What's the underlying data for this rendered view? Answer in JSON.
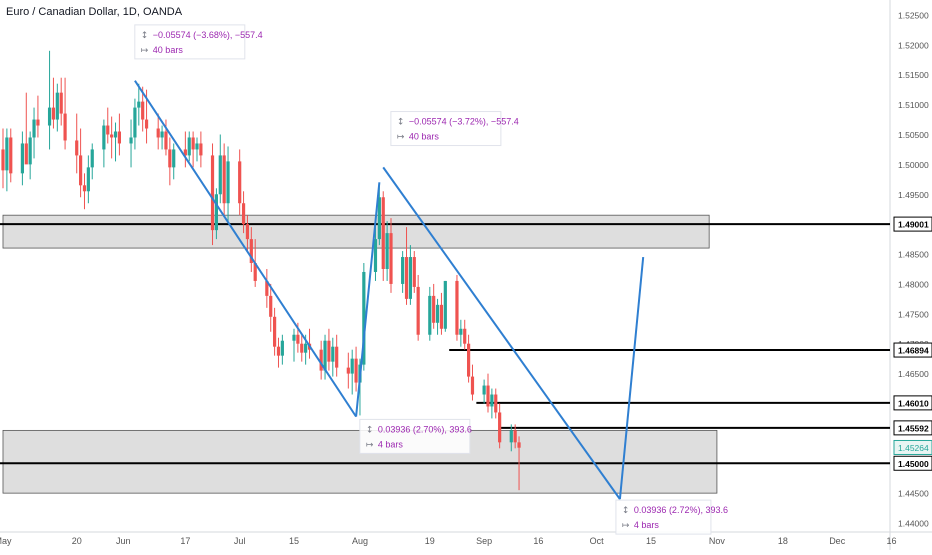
{
  "title": "Euro / Canadian Dollar, 1D, OANDA",
  "colors": {
    "up": "#26a69a",
    "down": "#ef5350",
    "trend": "#2f7fd1",
    "zone_fill": "#d3d3d3",
    "level": "#000000",
    "measure_text": "#9c27b0"
  },
  "chart_data": {
    "type": "candlestick",
    "title": "Euro / Canadian Dollar, 1D, OANDA",
    "ylim": [
      1.4385,
      1.5275
    ],
    "y_ticks": [
      "1.52500",
      "1.52000",
      "1.51500",
      "1.51000",
      "1.50500",
      "1.50000",
      "1.49500",
      "1.49001",
      "1.48500",
      "1.48000",
      "1.47500",
      "1.47000",
      "1.46894",
      "1.46500",
      "1.46010",
      "1.45592",
      "1.45264",
      "1.45000",
      "1.44500",
      "1.44000"
    ],
    "y_tick_values": [
      1.525,
      1.52,
      1.515,
      1.51,
      1.505,
      1.5,
      1.495,
      1.49001,
      1.485,
      1.48,
      1.475,
      1.47,
      1.46894,
      1.465,
      1.4601,
      1.45592,
      1.45264,
      1.45,
      1.445,
      1.44
    ],
    "x_labels": [
      {
        "label": "May",
        "date": "2019-05-01"
      },
      {
        "label": "20",
        "date": "2019-05-20"
      },
      {
        "label": "Jun",
        "date": "2019-06-01"
      },
      {
        "label": "17",
        "date": "2019-06-17"
      },
      {
        "label": "Jul",
        "date": "2019-07-01"
      },
      {
        "label": "15",
        "date": "2019-07-15"
      },
      {
        "label": "Aug",
        "date": "2019-08-01"
      },
      {
        "label": "19",
        "date": "2019-08-19"
      },
      {
        "label": "Sep",
        "date": "2019-09-02"
      },
      {
        "label": "16",
        "date": "2019-09-16"
      },
      {
        "label": "Oct",
        "date": "2019-10-01"
      },
      {
        "label": "15",
        "date": "2019-10-15"
      },
      {
        "label": "Nov",
        "date": "2019-11-01"
      },
      {
        "label": "18",
        "date": "2019-11-18"
      },
      {
        "label": "Dec",
        "date": "2019-12-02"
      },
      {
        "label": "16",
        "date": "2019-12-16"
      }
    ],
    "x_range": [
      "2019-05-01",
      "2019-12-17"
    ],
    "candles": [
      {
        "date": "2019-05-01",
        "o": 1.5025,
        "h": 1.506,
        "l": 1.496,
        "c": 1.499
      },
      {
        "date": "2019-05-02",
        "o": 1.499,
        "h": 1.506,
        "l": 1.4955,
        "c": 1.5045
      },
      {
        "date": "2019-05-03",
        "o": 1.5045,
        "h": 1.506,
        "l": 1.497,
        "c": 1.4985
      },
      {
        "date": "2019-05-06",
        "o": 1.4985,
        "h": 1.5055,
        "l": 1.4965,
        "c": 1.5035
      },
      {
        "date": "2019-05-07",
        "o": 1.5035,
        "h": 1.512,
        "l": 1.5005,
        "c": 1.5
      },
      {
        "date": "2019-05-08",
        "o": 1.5,
        "h": 1.5055,
        "l": 1.4975,
        "c": 1.5045
      },
      {
        "date": "2019-05-09",
        "o": 1.5045,
        "h": 1.5095,
        "l": 1.501,
        "c": 1.5075
      },
      {
        "date": "2019-05-10",
        "o": 1.5075,
        "h": 1.5115,
        "l": 1.5045,
        "c": 1.5065
      },
      {
        "date": "2019-05-13",
        "o": 1.5065,
        "h": 1.519,
        "l": 1.5025,
        "c": 1.5095
      },
      {
        "date": "2019-05-14",
        "o": 1.5095,
        "h": 1.5145,
        "l": 1.506,
        "c": 1.5075
      },
      {
        "date": "2019-05-15",
        "o": 1.5075,
        "h": 1.5135,
        "l": 1.5055,
        "c": 1.512
      },
      {
        "date": "2019-05-16",
        "o": 1.512,
        "h": 1.5145,
        "l": 1.5065,
        "c": 1.5085
      },
      {
        "date": "2019-05-17",
        "o": 1.5085,
        "h": 1.5145,
        "l": 1.5025,
        "c": 1.504
      },
      {
        "date": "2019-05-20",
        "o": 1.504,
        "h": 1.5085,
        "l": 1.4985,
        "c": 1.5015
      },
      {
        "date": "2019-05-21",
        "o": 1.5015,
        "h": 1.506,
        "l": 1.4945,
        "c": 1.4965
      },
      {
        "date": "2019-05-22",
        "o": 1.4965,
        "h": 1.4985,
        "l": 1.4925,
        "c": 1.4955
      },
      {
        "date": "2019-05-23",
        "o": 1.4955,
        "h": 1.5015,
        "l": 1.4935,
        "c": 1.4995
      },
      {
        "date": "2019-05-24",
        "o": 1.4995,
        "h": 1.5035,
        "l": 1.4975,
        "c": 1.5025
      },
      {
        "date": "2019-05-27",
        "o": 1.5025,
        "h": 1.5075,
        "l": 1.4995,
        "c": 1.5065
      },
      {
        "date": "2019-05-28",
        "o": 1.5065,
        "h": 1.5095,
        "l": 1.5035,
        "c": 1.505
      },
      {
        "date": "2019-05-29",
        "o": 1.505,
        "h": 1.508,
        "l": 1.501,
        "c": 1.5045
      },
      {
        "date": "2019-05-30",
        "o": 1.5045,
        "h": 1.507,
        "l": 1.5005,
        "c": 1.5055
      },
      {
        "date": "2019-05-31",
        "o": 1.5055,
        "h": 1.5085,
        "l": 1.5015,
        "c": 1.5035
      },
      {
        "date": "2019-06-03",
        "o": 1.5035,
        "h": 1.5075,
        "l": 1.4995,
        "c": 1.5045
      },
      {
        "date": "2019-06-04",
        "o": 1.5045,
        "h": 1.511,
        "l": 1.5025,
        "c": 1.5095
      },
      {
        "date": "2019-06-05",
        "o": 1.5095,
        "h": 1.5135,
        "l": 1.5065,
        "c": 1.5105
      },
      {
        "date": "2019-06-06",
        "o": 1.5105,
        "h": 1.513,
        "l": 1.5055,
        "c": 1.5075
      },
      {
        "date": "2019-06-07",
        "o": 1.5075,
        "h": 1.5125,
        "l": 1.5035,
        "c": 1.506
      },
      {
        "date": "2019-06-10",
        "o": 1.506,
        "h": 1.5085,
        "l": 1.5025,
        "c": 1.5045
      },
      {
        "date": "2019-06-11",
        "o": 1.5045,
        "h": 1.5065,
        "l": 1.5025,
        "c": 1.5055
      },
      {
        "date": "2019-06-12",
        "o": 1.5055,
        "h": 1.5075,
        "l": 1.5015,
        "c": 1.5025
      },
      {
        "date": "2019-06-13",
        "o": 1.5025,
        "h": 1.5045,
        "l": 1.4965,
        "c": 1.4995
      },
      {
        "date": "2019-06-14",
        "o": 1.4995,
        "h": 1.5035,
        "l": 1.4975,
        "c": 1.5025
      },
      {
        "date": "2019-06-17",
        "o": 1.5025,
        "h": 1.5055,
        "l": 1.4995,
        "c": 1.5015
      },
      {
        "date": "2019-06-18",
        "o": 1.5015,
        "h": 1.5055,
        "l": 1.5005,
        "c": 1.5045
      },
      {
        "date": "2019-06-19",
        "o": 1.5045,
        "h": 1.5055,
        "l": 1.4995,
        "c": 1.5025
      },
      {
        "date": "2019-06-20",
        "o": 1.5025,
        "h": 1.5045,
        "l": 1.5005,
        "c": 1.5035
      },
      {
        "date": "2019-06-21",
        "o": 1.5035,
        "h": 1.5055,
        "l": 1.4995,
        "c": 1.5015
      },
      {
        "date": "2019-06-24",
        "o": 1.5015,
        "h": 1.5035,
        "l": 1.4865,
        "c": 1.489
      },
      {
        "date": "2019-06-25",
        "o": 1.489,
        "h": 1.496,
        "l": 1.4875,
        "c": 1.495
      },
      {
        "date": "2019-06-26",
        "o": 1.495,
        "h": 1.505,
        "l": 1.4935,
        "c": 1.5015
      },
      {
        "date": "2019-06-27",
        "o": 1.5015,
        "h": 1.5035,
        "l": 1.4915,
        "c": 1.4935
      },
      {
        "date": "2019-06-28",
        "o": 1.4935,
        "h": 1.503,
        "l": 1.4905,
        "c": 1.5005
      },
      {
        "date": "2019-07-01",
        "o": 1.5005,
        "h": 1.5025,
        "l": 1.4915,
        "c": 1.4935
      },
      {
        "date": "2019-07-02",
        "o": 1.4935,
        "h": 1.4955,
        "l": 1.4885,
        "c": 1.49
      },
      {
        "date": "2019-07-03",
        "o": 1.49,
        "h": 1.4915,
        "l": 1.4855,
        "c": 1.4875
      },
      {
        "date": "2019-07-04",
        "o": 1.4875,
        "h": 1.4895,
        "l": 1.482,
        "c": 1.4835
      },
      {
        "date": "2019-07-05",
        "o": 1.4835,
        "h": 1.4875,
        "l": 1.4795,
        "c": 1.4805
      },
      {
        "date": "2019-07-08",
        "o": 1.4805,
        "h": 1.4825,
        "l": 1.476,
        "c": 1.478
      },
      {
        "date": "2019-07-09",
        "o": 1.478,
        "h": 1.48,
        "l": 1.472,
        "c": 1.4745
      },
      {
        "date": "2019-07-10",
        "o": 1.4745,
        "h": 1.476,
        "l": 1.468,
        "c": 1.4695
      },
      {
        "date": "2019-07-11",
        "o": 1.4695,
        "h": 1.471,
        "l": 1.466,
        "c": 1.468
      },
      {
        "date": "2019-07-12",
        "o": 1.468,
        "h": 1.4715,
        "l": 1.4665,
        "c": 1.4705
      },
      {
        "date": "2019-07-15",
        "o": 1.4705,
        "h": 1.4725,
        "l": 1.467,
        "c": 1.4715
      },
      {
        "date": "2019-07-16",
        "o": 1.4715,
        "h": 1.4735,
        "l": 1.4685,
        "c": 1.47
      },
      {
        "date": "2019-07-17",
        "o": 1.47,
        "h": 1.4715,
        "l": 1.467,
        "c": 1.4685
      },
      {
        "date": "2019-07-18",
        "o": 1.4685,
        "h": 1.4715,
        "l": 1.4665,
        "c": 1.47
      },
      {
        "date": "2019-07-19",
        "o": 1.47,
        "h": 1.4725,
        "l": 1.4675,
        "c": 1.469
      },
      {
        "date": "2019-07-22",
        "o": 1.469,
        "h": 1.4705,
        "l": 1.464,
        "c": 1.4655
      },
      {
        "date": "2019-07-23",
        "o": 1.4655,
        "h": 1.4715,
        "l": 1.464,
        "c": 1.4705
      },
      {
        "date": "2019-07-24",
        "o": 1.4705,
        "h": 1.4725,
        "l": 1.4655,
        "c": 1.467
      },
      {
        "date": "2019-07-25",
        "o": 1.467,
        "h": 1.471,
        "l": 1.4645,
        "c": 1.4695
      },
      {
        "date": "2019-07-26",
        "o": 1.4695,
        "h": 1.4715,
        "l": 1.4645,
        "c": 1.466
      },
      {
        "date": "2019-07-29",
        "o": 1.466,
        "h": 1.4685,
        "l": 1.4625,
        "c": 1.465
      },
      {
        "date": "2019-07-30",
        "o": 1.465,
        "h": 1.469,
        "l": 1.4615,
        "c": 1.4675
      },
      {
        "date": "2019-07-31",
        "o": 1.4675,
        "h": 1.4695,
        "l": 1.462,
        "c": 1.4635
      },
      {
        "date": "2019-08-01",
        "o": 1.4635,
        "h": 1.4675,
        "l": 1.458,
        "c": 1.4665
      },
      {
        "date": "2019-08-02",
        "o": 1.4665,
        "h": 1.4835,
        "l": 1.4655,
        "c": 1.482
      },
      {
        "date": "2019-08-05",
        "o": 1.482,
        "h": 1.4915,
        "l": 1.4805,
        "c": 1.4875
      },
      {
        "date": "2019-08-06",
        "o": 1.4875,
        "h": 1.4965,
        "l": 1.4865,
        "c": 1.4945
      },
      {
        "date": "2019-08-07",
        "o": 1.4945,
        "h": 1.4955,
        "l": 1.4805,
        "c": 1.4825
      },
      {
        "date": "2019-08-08",
        "o": 1.4825,
        "h": 1.4905,
        "l": 1.4805,
        "c": 1.4885
      },
      {
        "date": "2019-08-09",
        "o": 1.4885,
        "h": 1.491,
        "l": 1.4785,
        "c": 1.48
      },
      {
        "date": "2019-08-12",
        "o": 1.48,
        "h": 1.4855,
        "l": 1.4785,
        "c": 1.4845
      },
      {
        "date": "2019-08-13",
        "o": 1.4845,
        "h": 1.4895,
        "l": 1.4765,
        "c": 1.4775
      },
      {
        "date": "2019-08-14",
        "o": 1.4775,
        "h": 1.4865,
        "l": 1.4765,
        "c": 1.4845
      },
      {
        "date": "2019-08-15",
        "o": 1.4845,
        "h": 1.4855,
        "l": 1.4785,
        "c": 1.4795
      },
      {
        "date": "2019-08-16",
        "o": 1.4795,
        "h": 1.4815,
        "l": 1.4705,
        "c": 1.4715
      },
      {
        "date": "2019-08-19",
        "o": 1.4715,
        "h": 1.4795,
        "l": 1.4705,
        "c": 1.478
      },
      {
        "date": "2019-08-20",
        "o": 1.478,
        "h": 1.48,
        "l": 1.4725,
        "c": 1.4735
      },
      {
        "date": "2019-08-21",
        "o": 1.4735,
        "h": 1.4775,
        "l": 1.4715,
        "c": 1.4765
      },
      {
        "date": "2019-08-22",
        "o": 1.4765,
        "h": 1.4785,
        "l": 1.4715,
        "c": 1.4725
      },
      {
        "date": "2019-08-23",
        "o": 1.4725,
        "h": 1.4805,
        "l": 1.472,
        "c": 1.4805
      },
      {
        "date": "2019-08-26",
        "o": 1.4805,
        "h": 1.4815,
        "l": 1.4705,
        "c": 1.4715
      },
      {
        "date": "2019-08-27",
        "o": 1.4715,
        "h": 1.474,
        "l": 1.4695,
        "c": 1.4725
      },
      {
        "date": "2019-08-28",
        "o": 1.4725,
        "h": 1.474,
        "l": 1.469,
        "c": 1.47
      },
      {
        "date": "2019-08-29",
        "o": 1.47,
        "h": 1.4715,
        "l": 1.4635,
        "c": 1.4645
      },
      {
        "date": "2019-08-30",
        "o": 1.4645,
        "h": 1.4665,
        "l": 1.4605,
        "c": 1.4615
      },
      {
        "date": "2019-09-02",
        "o": 1.4615,
        "h": 1.464,
        "l": 1.46,
        "c": 1.463
      },
      {
        "date": "2019-09-03",
        "o": 1.463,
        "h": 1.465,
        "l": 1.4585,
        "c": 1.4595
      },
      {
        "date": "2019-09-04",
        "o": 1.4595,
        "h": 1.4625,
        "l": 1.4575,
        "c": 1.4615
      },
      {
        "date": "2019-09-05",
        "o": 1.4615,
        "h": 1.4625,
        "l": 1.4575,
        "c": 1.4585
      },
      {
        "date": "2019-09-06",
        "o": 1.4585,
        "h": 1.46,
        "l": 1.4525,
        "c": 1.4535
      },
      {
        "date": "2019-09-09",
        "o": 1.4535,
        "h": 1.4565,
        "l": 1.452,
        "c": 1.4555
      },
      {
        "date": "2019-09-10",
        "o": 1.4555,
        "h": 1.4565,
        "l": 1.4525,
        "c": 1.4535
      },
      {
        "date": "2019-09-11",
        "o": 1.4535,
        "h": 1.4545,
        "l": 1.4455,
        "c": 1.4526
      }
    ],
    "horizontal_levels": [
      1.49001,
      1.46894,
      1.4601,
      1.45592,
      1.45
    ],
    "zones": [
      {
        "from": "2019-05-01",
        "to": "2019-10-30",
        "top": 1.4915,
        "bottom": 1.486
      },
      {
        "from": "2019-05-01",
        "to": "2019-11-01",
        "top": 1.4555,
        "bottom": 1.445
      }
    ],
    "trend_lines": [
      {
        "from": {
          "date": "2019-06-04",
          "price": 1.514
        },
        "to": {
          "date": "2019-07-31",
          "price": 1.4578
        }
      },
      {
        "from": {
          "date": "2019-07-31",
          "price": 1.4578
        },
        "to": {
          "date": "2019-08-06",
          "price": 1.497
        }
      },
      {
        "from": {
          "date": "2019-08-07",
          "price": 1.4995
        },
        "to": {
          "date": "2019-10-07",
          "price": 1.444
        }
      },
      {
        "from": {
          "date": "2019-10-07",
          "price": 1.444
        },
        "to": {
          "date": "2019-10-13",
          "price": 1.4845
        }
      }
    ],
    "measures": [
      {
        "change": "−0.05574 (−3.68%), −557.4",
        "bars": "40 bars",
        "anchor": {
          "date": "2019-06-05",
          "price": 1.5225
        }
      },
      {
        "change": "−0.05574 (−3.72%), −557.4",
        "bars": "40 bars",
        "anchor": {
          "date": "2019-08-10",
          "price": 1.508
        }
      },
      {
        "change": "0.03936 (2.70%), 393.6",
        "bars": "4 bars",
        "anchor": {
          "date": "2019-08-02",
          "price": 1.4565
        }
      },
      {
        "change": "0.03936 (2.72%), 393.6",
        "bars": "4 bars",
        "anchor": {
          "date": "2019-10-07",
          "price": 1.443
        }
      }
    ],
    "current_price": "1.45264"
  }
}
